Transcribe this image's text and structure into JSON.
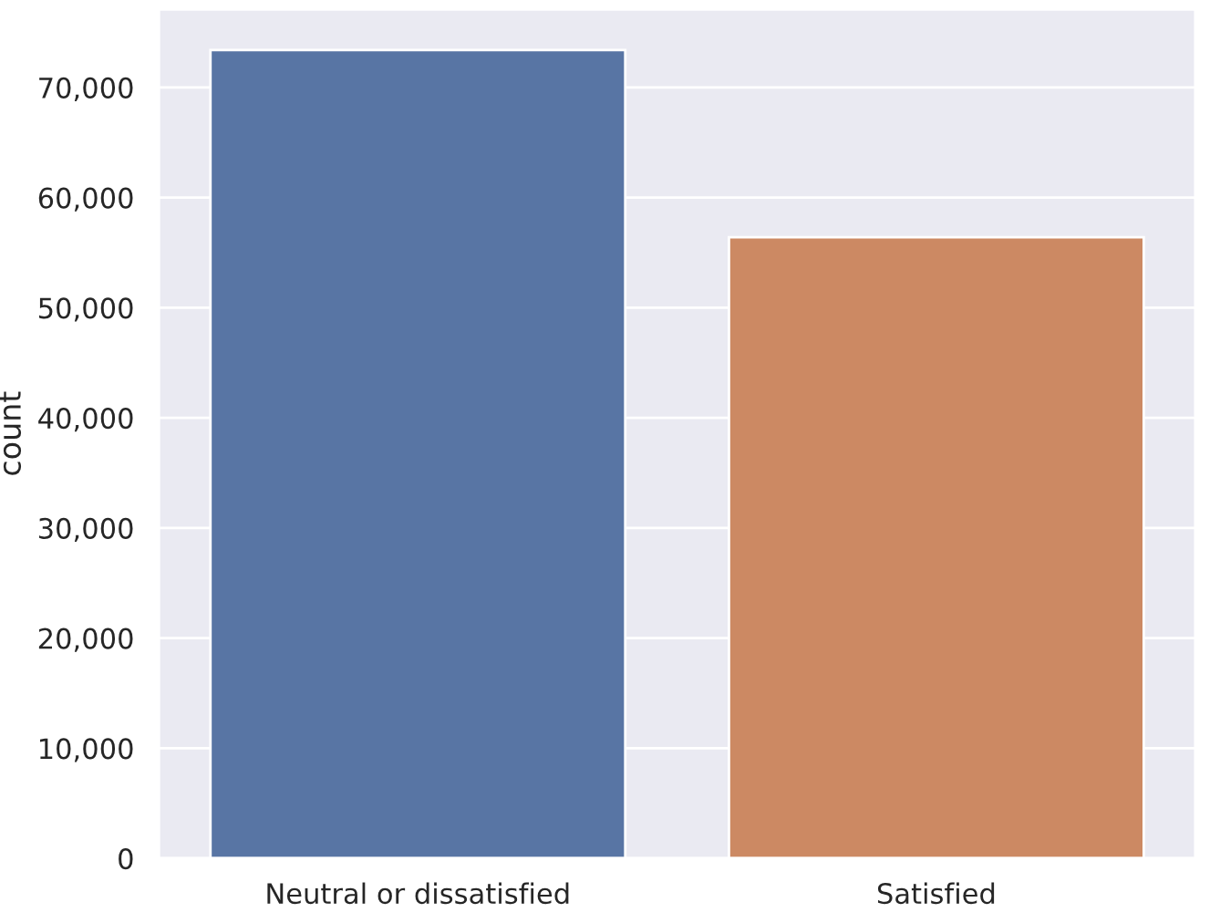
{
  "chart_data": {
    "type": "bar",
    "ylabel": "count",
    "categories": [
      "Neutral or dissatisfied",
      "Satisfied"
    ],
    "values": [
      73400,
      56400
    ],
    "colors": [
      "#5875a4",
      "#cc8963"
    ],
    "ylim": [
      0,
      77100
    ],
    "yticks": [
      0,
      {
        "value": 10000,
        "label": "10,000"
      },
      {
        "value": 20000,
        "label": "20,000"
      },
      {
        "value": 30000,
        "label": "30,000"
      },
      {
        "value": 40000,
        "label": "40,000"
      },
      {
        "value": 50000,
        "label": "50,000"
      },
      {
        "value": 60000,
        "label": "60,000"
      },
      {
        "value": 70000,
        "label": "70,000"
      }
    ],
    "grid": "y"
  }
}
